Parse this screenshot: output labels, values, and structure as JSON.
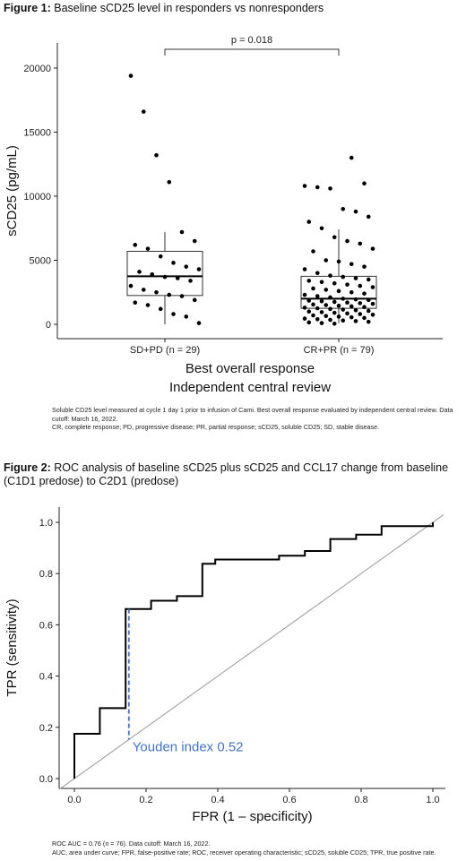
{
  "figure1": {
    "label": "Figure 1:",
    "title": " Baseline sCD25 level in responders vs nonresponders",
    "notes": [
      "Soluble CD25 level measured at cycle 1 day 1 prior to infusion of Cami. Best overall response evaluated by independent central review. Data cutoff: March 16, 2022.",
      "CR, complete response; PD, progressive disease; PR, partial response; sCD25, soluble CD25; SD, stable disease."
    ]
  },
  "figure2": {
    "label": "Figure 2:",
    "title": " ROC analysis of baseline sCD25 plus sCD25 and CCL17 change from baseline (C1D1 predose) to C2D1 (predose)",
    "notes": [
      "ROC AUC = 0.76 (n = 76). Data cutoff: March 16, 2022.",
      "AUC, area under curve; FPR, false-positive rate; ROC, receiver operating characteristic; sCD25, soluble CD25; TPR, true positive rate."
    ]
  },
  "chart_data": [
    {
      "type": "box",
      "title": "Baseline sCD25 level in responders vs nonresponders",
      "xlabel": "Best overall response\nIndependent central review",
      "xlabel_lines": [
        "Best overall response",
        "Independent central review"
      ],
      "ylabel": "sCD25 (pg/mL)",
      "ylim": [
        -1000,
        21000
      ],
      "yticks": [
        0,
        5000,
        10000,
        15000,
        20000
      ],
      "ytick_labels": [
        "0",
        "5000",
        "10000",
        "15000",
        "20000"
      ],
      "grid": false,
      "annotation": "p = 0.018",
      "categories": [
        "SD+PD (n = 29)",
        "CR+PR (n = 79)"
      ],
      "boxes": [
        {
          "whisker_low": 0,
          "q1": 2250,
          "median": 3750,
          "q3": 5700,
          "whisker_high": 7200
        },
        {
          "whisker_low": 100,
          "q1": 1250,
          "median": 2000,
          "q3": 3750,
          "whisker_high": 7400
        }
      ],
      "points": [
        [
          19400,
          16600,
          13200,
          11100,
          7200,
          6500,
          6200,
          5900,
          5300,
          4800,
          4500,
          4300,
          4100,
          3900,
          3700,
          3600,
          3400,
          3000,
          2700,
          2500,
          2300,
          2200,
          1900,
          1700,
          1500,
          1200,
          800,
          600,
          100
        ],
        [
          13000,
          11000,
          10800,
          10700,
          10600,
          9000,
          8800,
          8400,
          8000,
          7500,
          6800,
          6500,
          6300,
          5900,
          5700,
          5000,
          4900,
          4700,
          4500,
          4300,
          4000,
          3800,
          3700,
          3600,
          3500,
          3400,
          3300,
          3200,
          3100,
          3000,
          2900,
          2800,
          2700,
          2600,
          2500,
          2400,
          2300,
          2200,
          2100,
          2000,
          1950,
          1900,
          1850,
          1800,
          1750,
          1700,
          1650,
          1600,
          1550,
          1500,
          1450,
          1400,
          1350,
          1300,
          1250,
          1200,
          1150,
          1100,
          1050,
          1000,
          950,
          900,
          850,
          800,
          750,
          700,
          650,
          600,
          550,
          500,
          450,
          400,
          350,
          300,
          250,
          200,
          150,
          100,
          50
        ]
      ]
    },
    {
      "type": "line",
      "title": "ROC analysis of baseline sCD25 plus sCD25 and CCL17 change from baseline (C1D1 predose) to C2D1 (predose)",
      "xlabel": "FPR (1 – specificity)",
      "ylabel": "TPR (sensitivity)",
      "xlim": [
        -0.04,
        1.04
      ],
      "ylim": [
        -0.04,
        1.06
      ],
      "xticks": [
        0,
        0.2,
        0.4,
        0.6,
        0.8,
        1
      ],
      "xtick_labels": [
        "0.0",
        "0.2",
        "0.4",
        "0.6",
        "0.8",
        "1.0"
      ],
      "yticks": [
        0,
        0.2,
        0.4,
        0.6,
        0.8,
        1
      ],
      "ytick_labels": [
        "0.0",
        "0.2",
        "0.4",
        "0.6",
        "0.8",
        "1.0"
      ],
      "grid": false,
      "roc_points": [
        [
          0,
          0
        ],
        [
          0,
          0.175
        ],
        [
          0.071,
          0.175
        ],
        [
          0.071,
          0.275
        ],
        [
          0.143,
          0.275
        ],
        [
          0.143,
          0.662
        ],
        [
          0.179,
          0.662
        ],
        [
          0.179,
          0.662
        ],
        [
          0.214,
          0.662
        ],
        [
          0.214,
          0.694
        ],
        [
          0.286,
          0.694
        ],
        [
          0.286,
          0.712
        ],
        [
          0.357,
          0.712
        ],
        [
          0.357,
          0.838
        ],
        [
          0.393,
          0.838
        ],
        [
          0.393,
          0.855
        ],
        [
          0.571,
          0.855
        ],
        [
          0.571,
          0.87
        ],
        [
          0.643,
          0.87
        ],
        [
          0.643,
          0.888
        ],
        [
          0.714,
          0.888
        ],
        [
          0.714,
          0.935
        ],
        [
          0.786,
          0.935
        ],
        [
          0.786,
          0.952
        ],
        [
          0.857,
          0.952
        ],
        [
          0.857,
          0.985
        ],
        [
          1.0,
          0.985
        ],
        [
          1.0,
          1.0
        ]
      ],
      "reference_line": [
        [
          -0.04,
          -0.04
        ],
        [
          1.03,
          1.03
        ]
      ],
      "youden": {
        "label": "Youden index 0.52",
        "x": 0.152,
        "y_low": 0.152,
        "y_high": 0.662,
        "color": "#4472c4"
      }
    }
  ]
}
